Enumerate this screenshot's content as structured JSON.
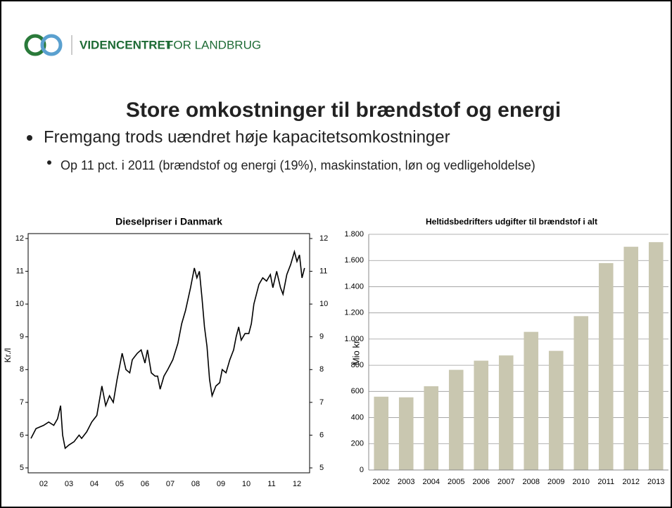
{
  "header": {
    "brand_bold": "VIDENCENTRET",
    "brand_rest": "FOR LANDBRUG"
  },
  "title": "Store omkostninger til brændstof og energi",
  "bullets": [
    {
      "text": "Fremgang trods uændret høje kapacitetsomkostninger",
      "sub": [
        "Op 11 pct. i 2011 (brændstof og energi (19%), maskinstation, løn og vedligeholdelse)"
      ]
    }
  ],
  "chart_data": [
    {
      "type": "line",
      "title": "Dieselpriser i Danmark",
      "ylabel": "Kr./l",
      "color": "#000000",
      "x": [
        2002.0,
        2002.2,
        2002.5,
        2002.7,
        2002.9,
        2003.05,
        2003.17,
        2003.25,
        2003.35,
        2003.5,
        2003.7,
        2003.9,
        2004.0,
        2004.2,
        2004.4,
        2004.6,
        2004.8,
        2004.95,
        2005.1,
        2005.25,
        2005.4,
        2005.5,
        2005.6,
        2005.75,
        2005.9,
        2006.0,
        2006.2,
        2006.35,
        2006.5,
        2006.6,
        2006.75,
        2006.9,
        2007.0,
        2007.1,
        2007.25,
        2007.4,
        2007.6,
        2007.8,
        2007.95,
        2008.1,
        2008.3,
        2008.45,
        2008.55,
        2008.65,
        2008.75,
        2008.85,
        2008.95,
        2009.05,
        2009.15,
        2009.3,
        2009.45,
        2009.55,
        2009.7,
        2009.85,
        2010.0,
        2010.1,
        2010.2,
        2010.3,
        2010.45,
        2010.6,
        2010.7,
        2010.8,
        2010.9,
        2011.0,
        2011.15,
        2011.3,
        2011.45,
        2011.55,
        2011.7,
        2011.85,
        2011.95,
        2012.1,
        2012.25,
        2012.4,
        2012.5,
        2012.6,
        2012.7,
        2012.8
      ],
      "values": [
        5.9,
        6.2,
        6.3,
        6.4,
        6.3,
        6.5,
        6.9,
        6.0,
        5.6,
        5.7,
        5.8,
        6.0,
        5.9,
        6.1,
        6.4,
        6.6,
        7.5,
        6.9,
        7.2,
        7.0,
        7.7,
        8.1,
        8.5,
        8.0,
        7.9,
        8.3,
        8.5,
        8.6,
        8.2,
        8.6,
        7.9,
        7.8,
        7.8,
        7.4,
        7.8,
        8.0,
        8.3,
        8.8,
        9.4,
        9.8,
        10.5,
        11.1,
        10.8,
        11.0,
        10.2,
        9.3,
        8.7,
        7.7,
        7.2,
        7.5,
        7.6,
        8.0,
        7.9,
        8.3,
        8.6,
        9.0,
        9.3,
        8.9,
        9.1,
        9.1,
        9.4,
        10.0,
        10.3,
        10.6,
        10.8,
        10.7,
        10.9,
        10.5,
        11.0,
        10.5,
        10.3,
        10.9,
        11.2,
        11.6,
        11.3,
        11.5,
        10.8,
        11.1
      ],
      "xlim": [
        2001.89,
        2013.0
      ],
      "xticks": [
        {
          "value": 2002.5,
          "label": "02"
        },
        {
          "value": 2003.5,
          "label": "03"
        },
        {
          "value": 2004.5,
          "label": "04"
        },
        {
          "value": 2005.5,
          "label": "05"
        },
        {
          "value": 2006.5,
          "label": "06"
        },
        {
          "value": 2007.5,
          "label": "07"
        },
        {
          "value": 2008.5,
          "label": "08"
        },
        {
          "value": 2009.5,
          "label": "09"
        },
        {
          "value": 2010.5,
          "label": "10"
        },
        {
          "value": 2011.5,
          "label": "11"
        },
        {
          "value": 2012.5,
          "label": "12"
        }
      ],
      "ylim": [
        4.85,
        12.15
      ],
      "yticks": [
        5,
        6,
        7,
        8,
        9,
        10,
        11,
        12
      ]
    },
    {
      "type": "bar",
      "title": "Heltidsbedrifters udgifter til brændstof i alt",
      "ylabel": "Mio kr.",
      "color": "#c9c7b0",
      "categories": [
        "2002",
        "2003",
        "2004",
        "2005",
        "2006",
        "2007",
        "2008",
        "2009",
        "2010",
        "2011",
        "2012",
        "2013"
      ],
      "values": [
        560,
        555,
        640,
        765,
        835,
        875,
        1055,
        910,
        1175,
        1580,
        1705,
        1740
      ],
      "ylim": [
        0,
        1800
      ],
      "yticks": [
        0,
        200,
        400,
        600,
        800,
        {
          "value": 1000,
          "label": "1.000"
        },
        {
          "value": 1200,
          "label": "1.200"
        },
        {
          "value": 1400,
          "label": "1.400"
        },
        {
          "value": 1600,
          "label": "1.600"
        },
        {
          "value": 1800,
          "label": "1.800"
        }
      ],
      "grid": true
    }
  ]
}
